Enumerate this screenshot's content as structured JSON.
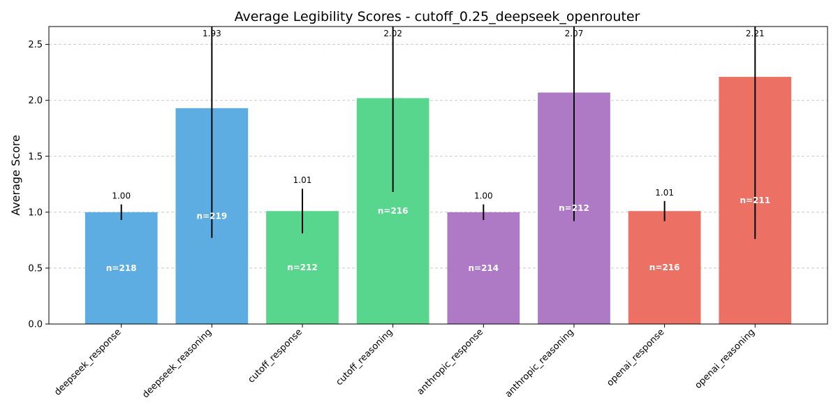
{
  "chart_data": {
    "type": "bar",
    "title": "Average Legibility Scores - cutoff_0.25_deepseek_openrouter",
    "xlabel": "",
    "ylabel": "Average Score",
    "ylim": [
      0,
      2.66
    ],
    "yticks": [
      "0.0",
      "0.5",
      "1.0",
      "1.5",
      "2.0",
      "2.5"
    ],
    "grid": "y-dashed",
    "categories": [
      "deepseek_response",
      "deepseek_reasoning",
      "cutoff_response",
      "cutoff_reasoning",
      "anthropic_response",
      "anthropic_reasoning",
      "openai_response",
      "openai_reasoning"
    ],
    "values": [
      1.0,
      1.93,
      1.01,
      2.02,
      1.0,
      2.07,
      1.01,
      2.21
    ],
    "value_labels": [
      "1.00",
      "1.93",
      "1.01",
      "2.02",
      "1.00",
      "2.07",
      "1.01",
      "2.21"
    ],
    "error": [
      0.07,
      1.16,
      0.2,
      0.84,
      0.07,
      1.15,
      0.09,
      1.45
    ],
    "n_labels": [
      "n=218",
      "n=219",
      "n=212",
      "n=216",
      "n=214",
      "n=212",
      "n=216",
      "n=211"
    ],
    "colors": [
      "#5dade2",
      "#5dade2",
      "#58d68d",
      "#58d68d",
      "#af7ac5",
      "#af7ac5",
      "#ec7063",
      "#ec7063"
    ]
  }
}
